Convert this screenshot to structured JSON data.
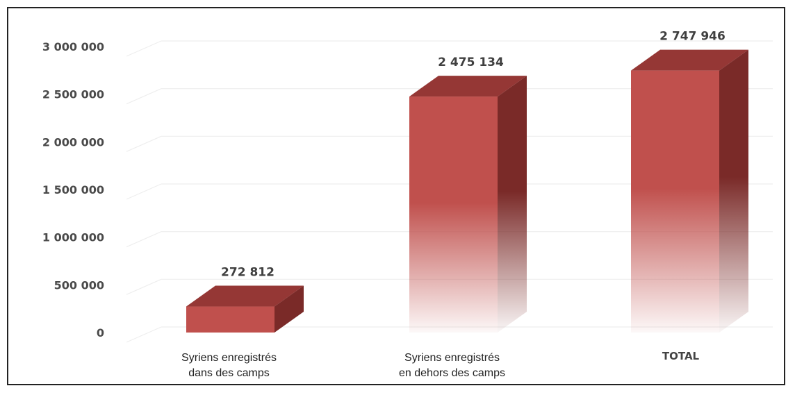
{
  "chart_data": {
    "type": "bar",
    "categories": [
      [
        "Syriens enregistrés",
        "dans des camps"
      ],
      [
        "Syriens enregistrés",
        "en dehors des camps"
      ],
      [
        "TOTAL"
      ]
    ],
    "values": [
      272812,
      2475134,
      2747946
    ],
    "value_labels": [
      "272 812",
      "2 475 134",
      "2 747 946"
    ],
    "y_ticks": [
      0,
      500000,
      1000000,
      1500000,
      2000000,
      2500000,
      3000000
    ],
    "y_tick_labels": [
      "0",
      "500 000",
      "1 000 000",
      "1 500 000",
      "2 000 000",
      "2 500 000",
      "3 000 000"
    ],
    "ylim": [
      0,
      3000000
    ],
    "grid": true,
    "legend": "none",
    "colors": {
      "front": "#c0504d",
      "top": "#953735",
      "side": "#7a2a28",
      "grid": "#eeeeee"
    }
  }
}
